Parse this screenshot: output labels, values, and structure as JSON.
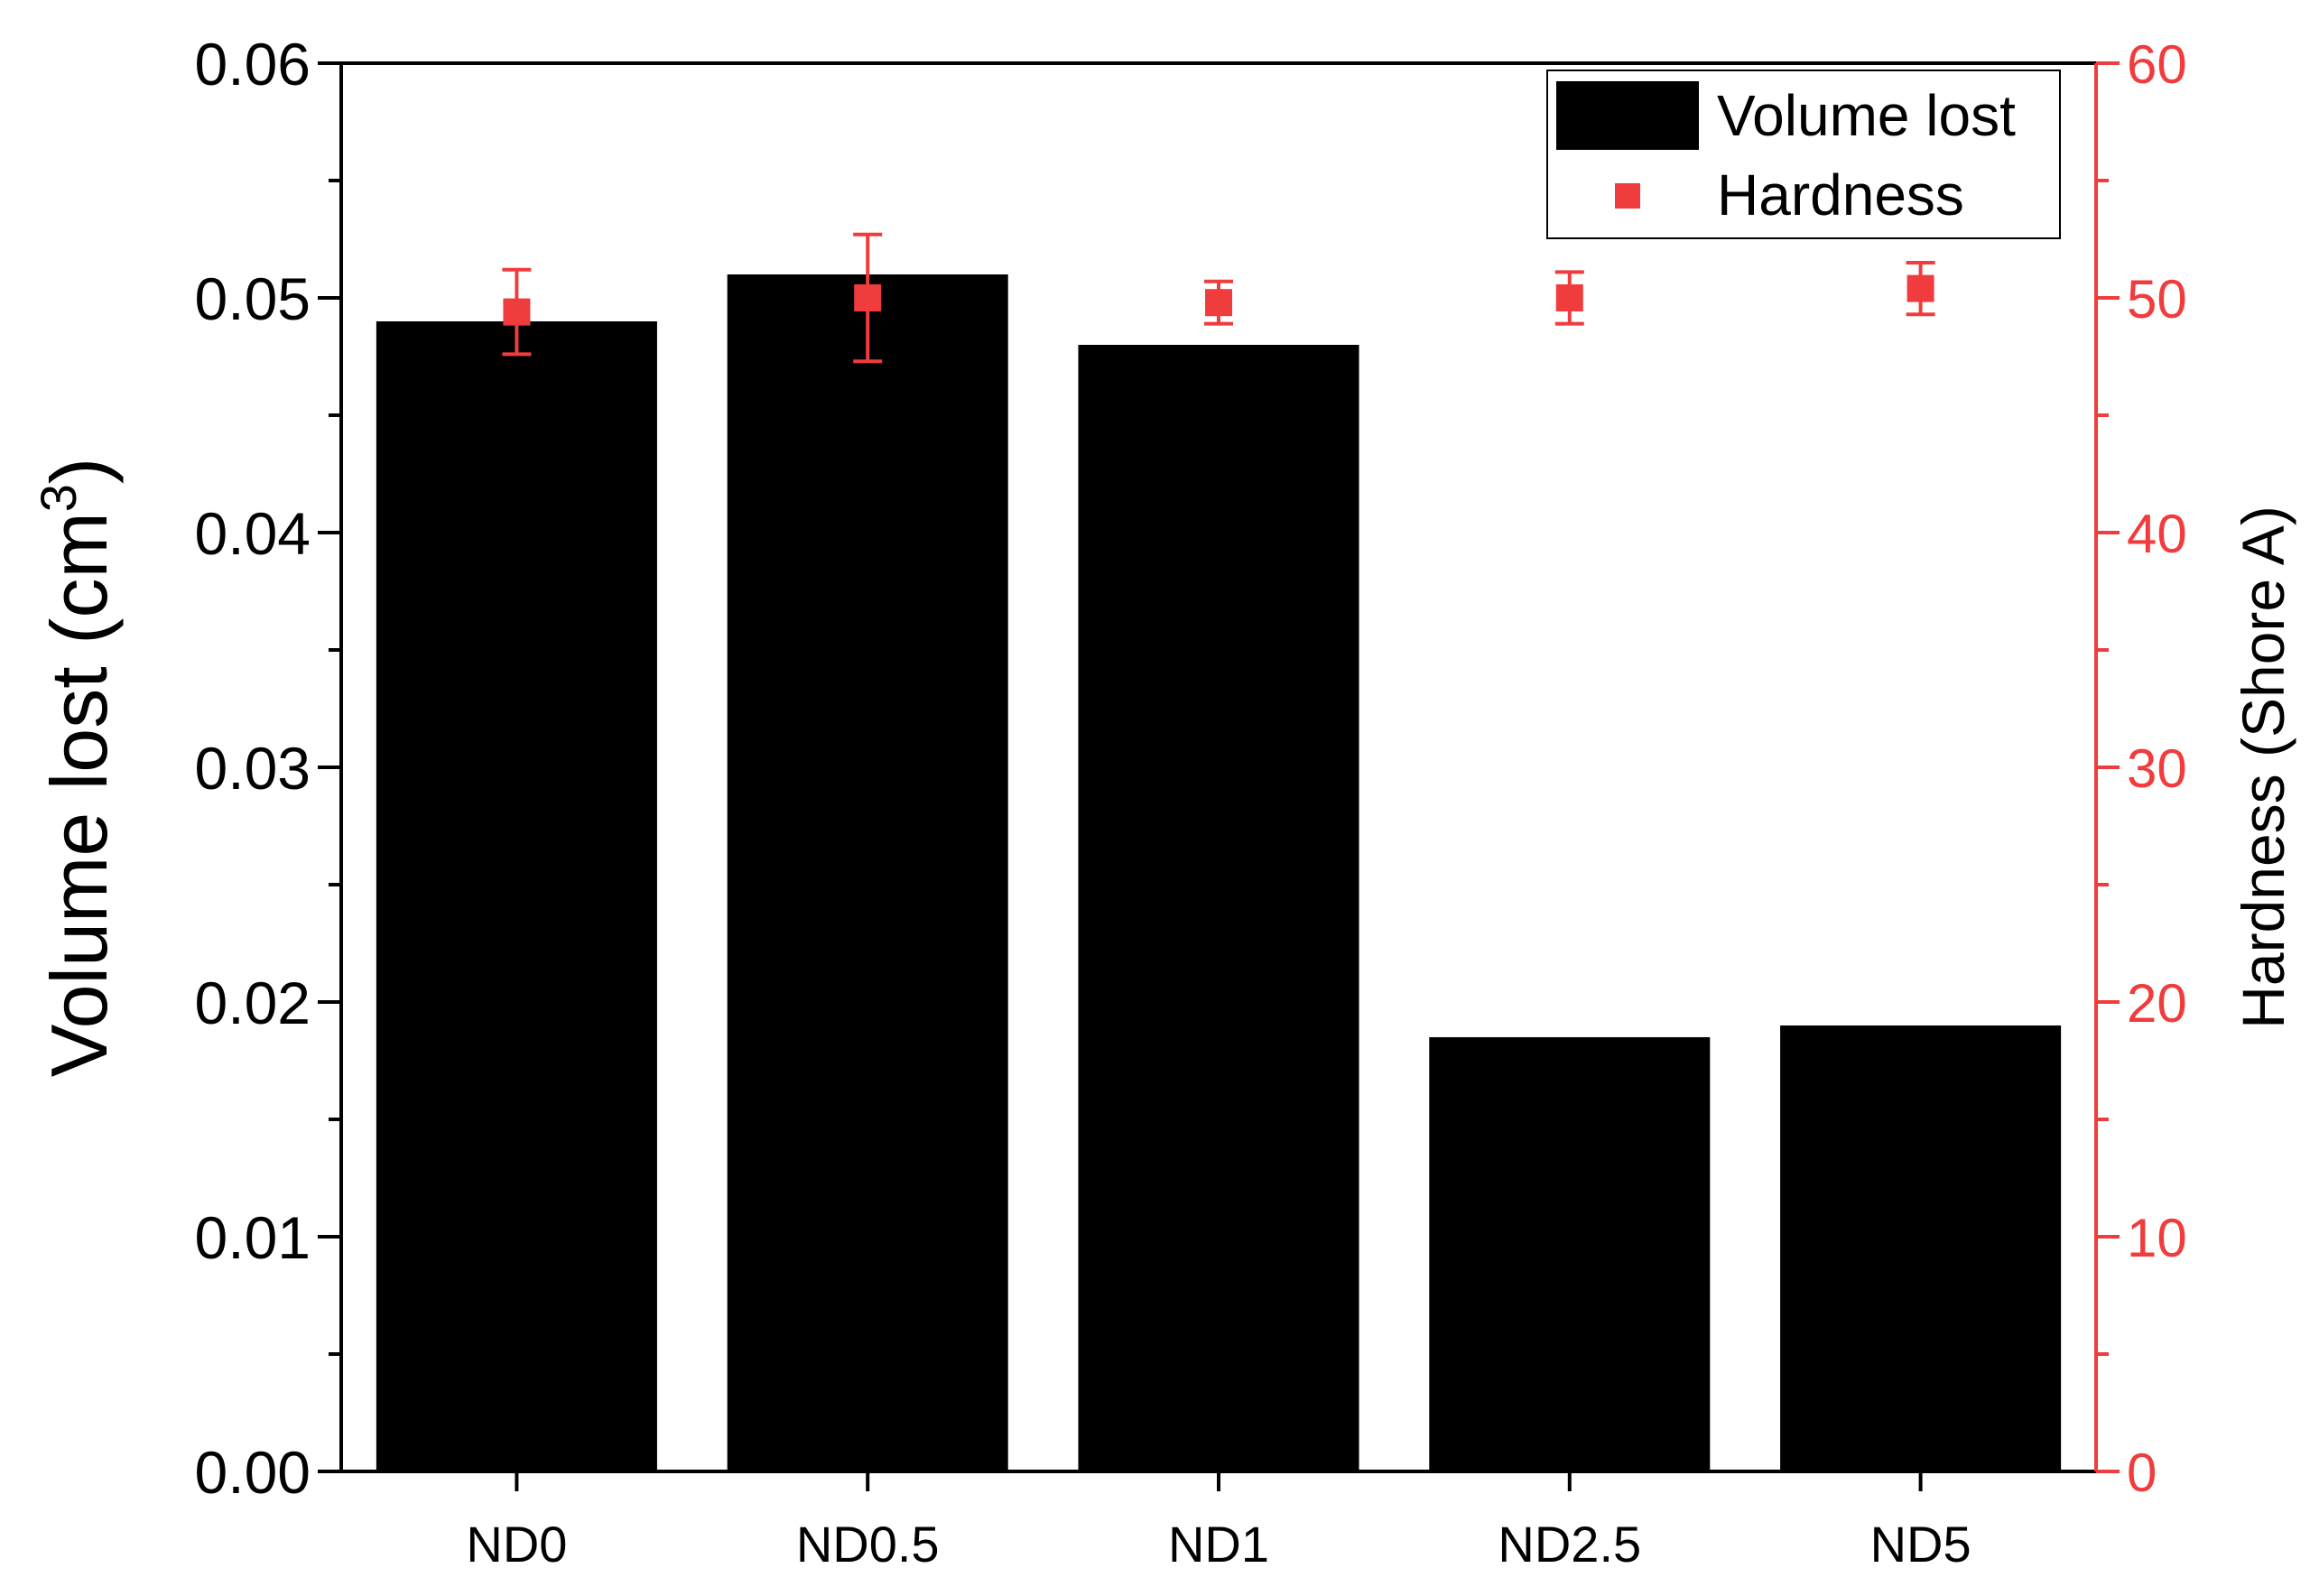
{
  "chart_data": {
    "type": "bar",
    "categories": [
      "ND0",
      "ND0.5",
      "ND1",
      "ND2.5",
      "ND5"
    ],
    "series": [
      {
        "name": "Volume lost",
        "kind": "bar",
        "axis": "left",
        "color": "#000000",
        "values": [
          0.049,
          0.051,
          0.048,
          0.0185,
          0.019
        ]
      },
      {
        "name": "Hardness",
        "kind": "scatter",
        "axis": "right",
        "color": "#f03c3c",
        "values": [
          49.4,
          50.0,
          49.8,
          50.0,
          50.4
        ],
        "errors": [
          1.8,
          2.7,
          0.9,
          1.1,
          1.1
        ]
      }
    ],
    "ylabel": "Volume lost (cm",
    "ylabel_superscript": "3",
    "ylabel_suffix": ")",
    "y2label": "Hardness (Shore A)",
    "ylim": [
      0,
      0.06
    ],
    "y2lim": [
      0,
      60
    ],
    "yticks": [
      "0.00",
      "0.01",
      "0.02",
      "0.03",
      "0.04",
      "0.05",
      "0.06"
    ],
    "y2ticks": [
      "0",
      "10",
      "20",
      "30",
      "40",
      "50",
      "60"
    ],
    "grid": false,
    "legend_position": "top-right"
  }
}
